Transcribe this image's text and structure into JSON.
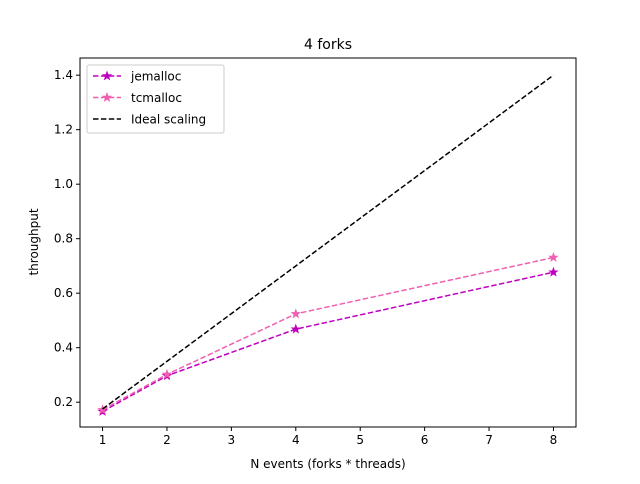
{
  "chart_data": {
    "type": "line",
    "title": "4 forks",
    "xlabel": "N events (forks * threads)",
    "ylabel": "throughput",
    "xlim": [
      0.65,
      8.35
    ],
    "ylim": [
      0.109,
      1.463
    ],
    "xticks": [
      1,
      2,
      3,
      4,
      5,
      6,
      7,
      8
    ],
    "yticks": [
      0.2,
      0.4,
      0.6,
      0.8,
      1.0,
      1.2,
      1.4
    ],
    "ytick_labels": [
      "0.2",
      "0.4",
      "0.6",
      "0.8",
      "1.0",
      "1.2",
      "1.4"
    ],
    "grid": false,
    "legend_position": "top-left",
    "series": [
      {
        "name": "jemalloc",
        "color": "#c000c0",
        "linestyle": "dashed",
        "marker": "star",
        "x": [
          1,
          2,
          4,
          8
        ],
        "y": [
          0.166,
          0.297,
          0.468,
          0.677
        ]
      },
      {
        "name": "tcmalloc",
        "color": "#f060b0",
        "linestyle": "dashed",
        "marker": "star",
        "x": [
          1,
          2,
          4,
          8
        ],
        "y": [
          0.172,
          0.302,
          0.524,
          0.731
        ]
      },
      {
        "name": "Ideal scaling",
        "color": "#000000",
        "linestyle": "dashed",
        "marker": "none",
        "x": [
          1,
          8
        ],
        "y": [
          0.175,
          1.4
        ]
      }
    ]
  }
}
